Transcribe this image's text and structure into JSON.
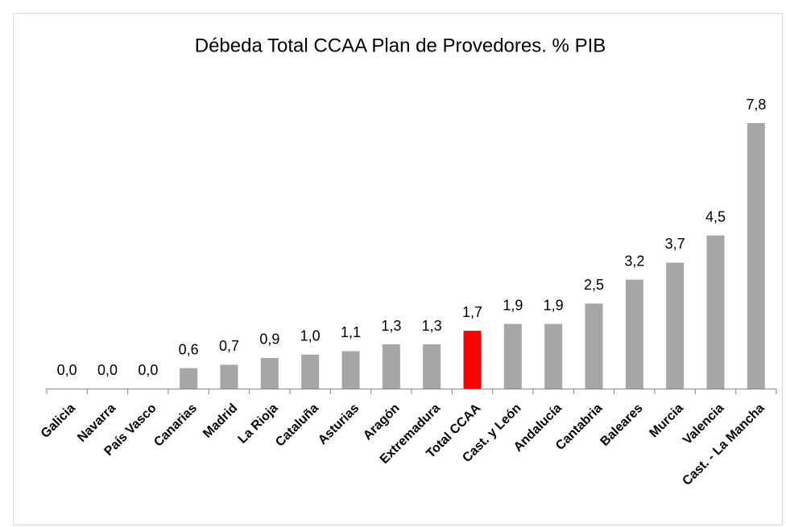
{
  "chart_data": {
    "type": "bar",
    "title": "Débeda Total CCAA Plan de Provedores. % PIB",
    "categories": [
      "Galicia",
      "Navarra",
      "País Vasco",
      "Canarias",
      "Madrid",
      "La Rioja",
      "Cataluña",
      "Asturias",
      "Aragón",
      "Extremadura",
      "Total CCAA",
      "Cast. y León",
      "Andalucía",
      "Cantabria",
      "Baleares",
      "Murcia",
      "Valencia",
      "Cast. - La Mancha"
    ],
    "values": [
      0.0,
      0.0,
      0.0,
      0.6,
      0.7,
      0.9,
      1.0,
      1.1,
      1.3,
      1.3,
      1.7,
      1.9,
      1.9,
      2.5,
      3.2,
      3.7,
      4.5,
      7.8
    ],
    "value_labels": [
      "0,0",
      "0,0",
      "0,0",
      "0,6",
      "0,7",
      "0,9",
      "1,0",
      "1,1",
      "1,3",
      "1,3",
      "1,7",
      "1,9",
      "1,9",
      "2,5",
      "3,2",
      "3,7",
      "4,5",
      "7,8"
    ],
    "colors": [
      "#a6a6a6",
      "#a6a6a6",
      "#a6a6a6",
      "#a6a6a6",
      "#a6a6a6",
      "#a6a6a6",
      "#a6a6a6",
      "#a6a6a6",
      "#a6a6a6",
      "#a6a6a6",
      "#ff0000",
      "#a6a6a6",
      "#a6a6a6",
      "#a6a6a6",
      "#a6a6a6",
      "#a6a6a6",
      "#a6a6a6",
      "#a6a6a6"
    ]
  }
}
